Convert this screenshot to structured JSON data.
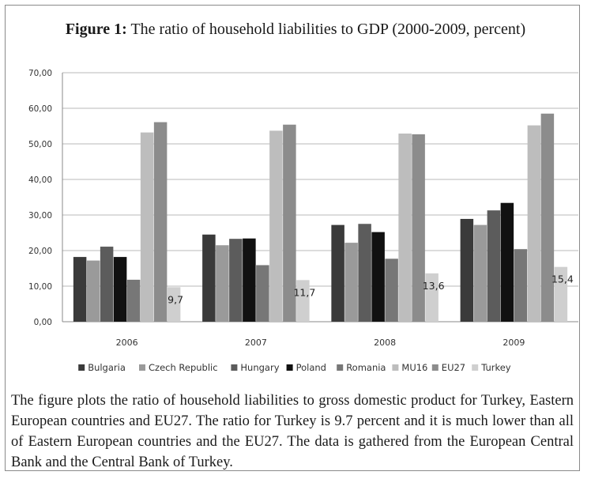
{
  "figure": {
    "label": "Figure 1:",
    "title": "The ratio of household liabilities to GDP (2000-2009, percent)",
    "caption": "The figure plots the ratio of household liabilities to gross domestic product for Turkey, Eastern European countries and EU27. The ratio for Turkey is 9.7 percent and it is much lower than all of Eastern European countries and the EU27. The data is gathered from the European Central Bank and the Central Bank of Turkey."
  },
  "chart_data": {
    "type": "bar",
    "title": "",
    "xlabel": "",
    "ylabel": "",
    "ylim": [
      0,
      70
    ],
    "yticks": [
      "0,00",
      "10,00",
      "20,00",
      "30,00",
      "40,00",
      "50,00",
      "60,00",
      "70,00"
    ],
    "grid": true,
    "legend_position": "bottom",
    "categories": [
      "2006",
      "2007",
      "2008",
      "2009"
    ],
    "series": [
      {
        "name": "Bulgaria",
        "color": "#3a3a3a",
        "values": [
          18.2,
          24.5,
          27.2,
          28.9
        ]
      },
      {
        "name": "Czech Republic",
        "color": "#9a9a9a",
        "values": [
          17.2,
          21.5,
          22.2,
          27.2
        ]
      },
      {
        "name": "Hungary",
        "color": "#5c5c5c",
        "values": [
          21.1,
          23.3,
          27.5,
          31.3
        ]
      },
      {
        "name": "Poland",
        "color": "#111111",
        "values": [
          18.2,
          23.4,
          25.2,
          33.4
        ]
      },
      {
        "name": "Romania",
        "color": "#777777",
        "values": [
          11.8,
          15.9,
          17.7,
          20.4
        ]
      },
      {
        "name": "MU16",
        "color": "#bdbdbd",
        "values": [
          53.2,
          53.7,
          52.9,
          55.2
        ]
      },
      {
        "name": "EU27",
        "color": "#8c8c8c",
        "values": [
          56.1,
          55.4,
          52.7,
          58.5
        ]
      },
      {
        "name": "Turkey",
        "color": "#cfcfcf",
        "values": [
          9.7,
          11.7,
          13.6,
          15.4
        ]
      }
    ],
    "data_labels": [
      {
        "series": "Turkey",
        "category": "2006",
        "text": "9,7"
      },
      {
        "series": "Turkey",
        "category": "2007",
        "text": "11,7"
      },
      {
        "series": "Turkey",
        "category": "2008",
        "text": "13,6"
      },
      {
        "series": "Turkey",
        "category": "2009",
        "text": "15,4"
      }
    ]
  }
}
